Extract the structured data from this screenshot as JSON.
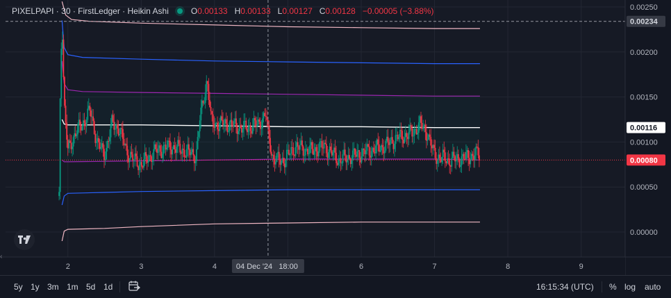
{
  "legend": {
    "symbol": "PIXELPAPI · 30 · FirstLedger · Heikin Ashi",
    "o_label": "O",
    "o_value": "0.00133",
    "h_label": "H",
    "h_value": "0.00133",
    "l_label": "L",
    "l_value": "0.00127",
    "c_label": "C",
    "c_value": "0.00128",
    "change": "−0.00005 (−3.88%)"
  },
  "toolbar": {
    "ranges": [
      "5y",
      "1y",
      "3m",
      "1m",
      "5d",
      "1d"
    ],
    "goto_icon": "calendar-arrow-icon",
    "time": "16:15:34 (UTC)",
    "percent": "%",
    "log": "log",
    "auto": "auto"
  },
  "crosshair": {
    "x_label": "04 Dec '24   18:00",
    "y_label": "0.00234"
  },
  "price_labels": {
    "upper": "0.00116",
    "last": "0.00080"
  },
  "colors": {
    "bg": "#161a25",
    "up": "#089981",
    "down": "#f23645",
    "band_outer": "#f0b7c3",
    "band_blue": "#2962ff",
    "band_purple": "#9c27b0",
    "mid": "#ffffff",
    "last_line": "#f23645"
  },
  "chart_data": {
    "type": "line",
    "title": "PIXELPAPI · 30 · FirstLedger · Heikin Ashi",
    "x_ticks": [
      "2",
      "3",
      "4",
      "5",
      "6",
      "7",
      "8",
      "9"
    ],
    "x_range": [
      1.15,
      9.6
    ],
    "y_ticks": [
      "0.00250",
      "0.00200",
      "0.00150",
      "0.00100",
      "0.00050",
      "0.00000"
    ],
    "ylim": [
      -0.0001,
      0.00256
    ],
    "grid": true,
    "series": [
      {
        "role": "band-upper-2",
        "color": "#f0b7c3",
        "x": [
          1.92,
          1.97,
          2.05,
          2.3,
          3,
          4,
          5,
          6,
          7,
          7.62
        ],
        "y": [
          0.00256,
          0.00241,
          0.00236,
          0.00234,
          0.00232,
          0.0023,
          0.00228,
          0.00227,
          0.00226,
          0.00226
        ]
      },
      {
        "role": "band-upper-1",
        "color": "#2962ff",
        "x": [
          1.92,
          1.95,
          2.0,
          2.2,
          3,
          4,
          5,
          6,
          7,
          7.62
        ],
        "y": [
          0.00235,
          0.00205,
          0.00197,
          0.00194,
          0.00192,
          0.0019,
          0.00189,
          0.00188,
          0.00187,
          0.00187
        ]
      },
      {
        "role": "band-upper-0",
        "color": "#9c27b0",
        "x": [
          1.92,
          1.95,
          2.0,
          2.2,
          3,
          4,
          5,
          6,
          7,
          7.62
        ],
        "y": [
          0.0019,
          0.00165,
          0.00158,
          0.00156,
          0.00155,
          0.00154,
          0.00153,
          0.00152,
          0.00151,
          0.00151
        ]
      },
      {
        "role": "vwap",
        "color": "#ffffff",
        "x": [
          1.92,
          1.95,
          2.0,
          2.5,
          3,
          4,
          5,
          6,
          7,
          7.62
        ],
        "y": [
          0.00125,
          0.0012,
          0.00119,
          0.00119,
          0.00119,
          0.00118,
          0.00117,
          0.00117,
          0.00116,
          0.00116
        ]
      },
      {
        "role": "band-lower-0",
        "color": "#9c27b0",
        "x": [
          1.92,
          1.95,
          2.0,
          3,
          4,
          5,
          6,
          7,
          7.62
        ],
        "y": [
          0.0008,
          0.00078,
          0.00078,
          0.00079,
          0.0008,
          0.00081,
          0.00081,
          0.00081,
          0.0008
        ]
      },
      {
        "role": "band-lower-1",
        "color": "#2962ff",
        "x": [
          1.92,
          1.95,
          2.0,
          2.5,
          3,
          4,
          5,
          6,
          7,
          7.62
        ],
        "y": [
          0.0003,
          0.0004,
          0.00043,
          0.00044,
          0.00045,
          0.00046,
          0.00047,
          0.00047,
          0.00047,
          0.00047
        ]
      },
      {
        "role": "band-lower-2",
        "color": "#f0b7c3",
        "x": [
          1.92,
          1.95,
          2.0,
          2.5,
          3,
          4,
          5,
          6,
          7,
          7.62
        ],
        "y": [
          -0.0001,
          1e-05,
          3e-05,
          4e-05,
          6e-05,
          9e-05,
          0.0001,
          0.00011,
          0.00011,
          0.00011
        ]
      },
      {
        "role": "price",
        "color": "#089981",
        "x": [
          1.88,
          1.9,
          1.92,
          1.95,
          2.0,
          2.1,
          2.2,
          2.3,
          2.4,
          2.5,
          2.6,
          2.7,
          2.8,
          2.9,
          3.0,
          3.2,
          3.4,
          3.6,
          3.75,
          3.8,
          3.9,
          3.95,
          4.0,
          4.2,
          4.4,
          4.6,
          4.7,
          4.73,
          4.8,
          4.95,
          5.1,
          5.3,
          5.5,
          5.7,
          5.9,
          6.1,
          6.3,
          6.5,
          6.7,
          6.8,
          6.9,
          7.0,
          7.2,
          7.4,
          7.6,
          7.62
        ],
        "y": [
          0.0004,
          0.0018,
          0.0024,
          0.0014,
          0.0009,
          0.0011,
          0.0012,
          0.00135,
          0.001,
          0.00085,
          0.0012,
          0.00115,
          0.0009,
          0.0008,
          0.00075,
          0.0009,
          0.00095,
          0.0009,
          0.00085,
          0.00125,
          0.0017,
          0.00125,
          0.0012,
          0.0012,
          0.00115,
          0.0012,
          0.0013,
          0.0011,
          0.0008,
          0.0008,
          0.00095,
          0.0009,
          0.00095,
          0.0008,
          0.00085,
          0.0009,
          0.00095,
          0.00105,
          0.0011,
          0.0012,
          0.0011,
          0.00085,
          0.0008,
          0.00082,
          0.00087,
          0.00082
        ]
      }
    ]
  }
}
